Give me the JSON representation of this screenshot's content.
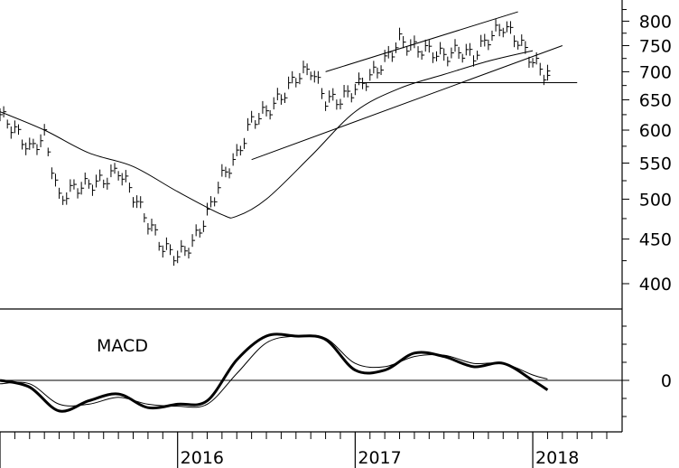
{
  "chart_data": [
    {
      "type": "ohlc",
      "panel": "price",
      "y_ticks": [
        400,
        450,
        500,
        550,
        600,
        650,
        700,
        750,
        800
      ],
      "y_tick_labels": [
        "400",
        "450",
        "500",
        "550",
        "600",
        "650",
        "700",
        "750",
        "800"
      ],
      "ylim": [
        385,
        830
      ],
      "y_scale": "log",
      "x_year_labels": [
        "2016",
        "2017",
        "2018"
      ],
      "xlim": [
        "2015-01",
        "2018-06"
      ],
      "series": [
        {
          "kind": "price-bars",
          "x": [
            "2015-01",
            "2015-02",
            "2015-03",
            "2015-04",
            "2015-05",
            "2015-06",
            "2015-07",
            "2015-08",
            "2015-09",
            "2015-10",
            "2015-11",
            "2015-12",
            "2016-01",
            "2016-02",
            "2016-03",
            "2016-04",
            "2016-05",
            "2016-06",
            "2016-07",
            "2016-08",
            "2016-09",
            "2016-10",
            "2016-11",
            "2016-12",
            "2017-01",
            "2017-02",
            "2017-03",
            "2017-04",
            "2017-05",
            "2017-06",
            "2017-07",
            "2017-08",
            "2017-09",
            "2017-10",
            "2017-11",
            "2017-12",
            "2018-01",
            "2018-02"
          ],
          "close": [
            625,
            600,
            570,
            590,
            500,
            515,
            520,
            525,
            540,
            505,
            470,
            440,
            430,
            445,
            480,
            530,
            560,
            615,
            630,
            655,
            690,
            705,
            650,
            650,
            670,
            690,
            720,
            760,
            745,
            740,
            730,
            740,
            730,
            765,
            790,
            760,
            720,
            690
          ]
        },
        {
          "kind": "moving-average",
          "x": [
            "2015-01",
            "2015-04",
            "2015-07",
            "2015-10",
            "2016-01",
            "2016-04",
            "2016-05",
            "2016-07",
            "2016-10",
            "2017-01",
            "2017-04",
            "2017-07",
            "2017-10",
            "2018-01"
          ],
          "values": [
            630,
            600,
            565,
            545,
            510,
            480,
            478,
            500,
            560,
            630,
            670,
            695,
            720,
            740
          ]
        }
      ],
      "trendlines": [
        {
          "kind": "channel-upper",
          "from": {
            "x": "2016-11",
            "y": 700
          },
          "to": {
            "x": "2017-12",
            "y": 820
          }
        },
        {
          "kind": "channel-lower",
          "from": {
            "x": "2016-06",
            "y": 555
          },
          "to": {
            "x": "2018-03",
            "y": 750
          }
        },
        {
          "kind": "support",
          "from": {
            "x": "2017-01",
            "y": 680
          },
          "to": {
            "x": "2018-04",
            "y": 680
          }
        }
      ]
    },
    {
      "type": "line",
      "panel": "indicator",
      "title": "MACD",
      "y_ticks": [
        0
      ],
      "y_tick_labels": [
        "0"
      ],
      "series": [
        {
          "kind": "macd",
          "x": [
            "2015-01",
            "2015-03",
            "2015-05",
            "2015-07",
            "2015-09",
            "2015-11",
            "2016-01",
            "2016-03",
            "2016-05",
            "2016-07",
            "2016-09",
            "2016-11",
            "2017-01",
            "2017-03",
            "2017-05",
            "2017-07",
            "2017-09",
            "2017-11",
            "2018-01",
            "2018-02"
          ],
          "values": [
            0,
            -10,
            -45,
            -30,
            -20,
            -40,
            -35,
            -30,
            30,
            65,
            65,
            60,
            15,
            15,
            40,
            35,
            20,
            25,
            0,
            -14
          ]
        },
        {
          "kind": "signal",
          "x": [
            "2015-01",
            "2015-03",
            "2015-05",
            "2015-07",
            "2015-09",
            "2015-11",
            "2016-01",
            "2016-03",
            "2016-05",
            "2016-07",
            "2016-09",
            "2016-11",
            "2017-01",
            "2017-03",
            "2017-05",
            "2017-07",
            "2017-09",
            "2017-11",
            "2018-01",
            "2018-02"
          ],
          "values": [
            -5,
            -5,
            -35,
            -35,
            -25,
            -35,
            -38,
            -35,
            10,
            55,
            65,
            62,
            25,
            20,
            35,
            37,
            25,
            25,
            8,
            2
          ]
        }
      ]
    }
  ]
}
